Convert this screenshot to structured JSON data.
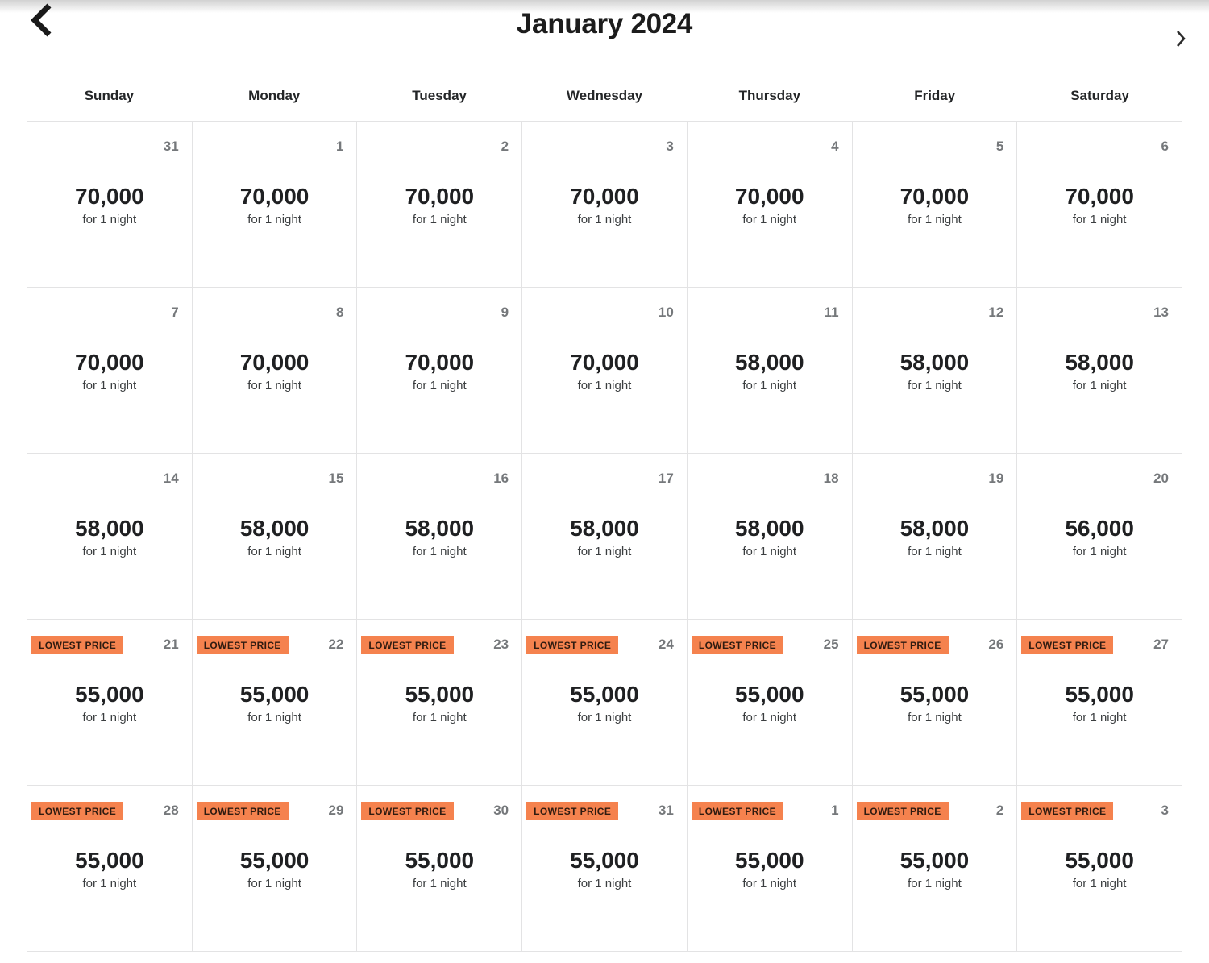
{
  "header": {
    "title": "January 2024"
  },
  "weekday_headers": [
    "Sunday",
    "Monday",
    "Tuesday",
    "Wednesday",
    "Thursday",
    "Friday",
    "Saturday"
  ],
  "badge_label": "LOWEST PRICE",
  "unit_label": "for 1 night",
  "colors": {
    "badge_bg": "#F5824E",
    "badge_text": "#2F1B10"
  },
  "weeks": [
    [
      {
        "day": "31",
        "price": "70,000",
        "lowest": false
      },
      {
        "day": "1",
        "price": "70,000",
        "lowest": false
      },
      {
        "day": "2",
        "price": "70,000",
        "lowest": false
      },
      {
        "day": "3",
        "price": "70,000",
        "lowest": false
      },
      {
        "day": "4",
        "price": "70,000",
        "lowest": false
      },
      {
        "day": "5",
        "price": "70,000",
        "lowest": false
      },
      {
        "day": "6",
        "price": "70,000",
        "lowest": false
      }
    ],
    [
      {
        "day": "7",
        "price": "70,000",
        "lowest": false
      },
      {
        "day": "8",
        "price": "70,000",
        "lowest": false
      },
      {
        "day": "9",
        "price": "70,000",
        "lowest": false
      },
      {
        "day": "10",
        "price": "70,000",
        "lowest": false
      },
      {
        "day": "11",
        "price": "58,000",
        "lowest": false
      },
      {
        "day": "12",
        "price": "58,000",
        "lowest": false
      },
      {
        "day": "13",
        "price": "58,000",
        "lowest": false
      }
    ],
    [
      {
        "day": "14",
        "price": "58,000",
        "lowest": false
      },
      {
        "day": "15",
        "price": "58,000",
        "lowest": false
      },
      {
        "day": "16",
        "price": "58,000",
        "lowest": false
      },
      {
        "day": "17",
        "price": "58,000",
        "lowest": false
      },
      {
        "day": "18",
        "price": "58,000",
        "lowest": false
      },
      {
        "day": "19",
        "price": "58,000",
        "lowest": false
      },
      {
        "day": "20",
        "price": "56,000",
        "lowest": false
      }
    ],
    [
      {
        "day": "21",
        "price": "55,000",
        "lowest": true
      },
      {
        "day": "22",
        "price": "55,000",
        "lowest": true
      },
      {
        "day": "23",
        "price": "55,000",
        "lowest": true
      },
      {
        "day": "24",
        "price": "55,000",
        "lowest": true
      },
      {
        "day": "25",
        "price": "55,000",
        "lowest": true
      },
      {
        "day": "26",
        "price": "55,000",
        "lowest": true
      },
      {
        "day": "27",
        "price": "55,000",
        "lowest": true
      }
    ],
    [
      {
        "day": "28",
        "price": "55,000",
        "lowest": true
      },
      {
        "day": "29",
        "price": "55,000",
        "lowest": true
      },
      {
        "day": "30",
        "price": "55,000",
        "lowest": true
      },
      {
        "day": "31",
        "price": "55,000",
        "lowest": true
      },
      {
        "day": "1",
        "price": "55,000",
        "lowest": true
      },
      {
        "day": "2",
        "price": "55,000",
        "lowest": true
      },
      {
        "day": "3",
        "price": "55,000",
        "lowest": true
      }
    ]
  ]
}
